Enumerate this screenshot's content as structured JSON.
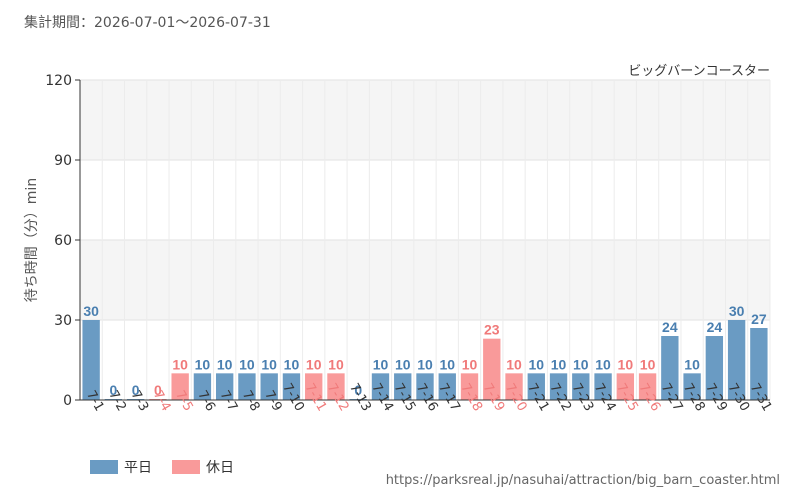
{
  "subtitle": "集計期間：2026-07-01～2026-07-31",
  "source_url": "https://parksreal.jp/nasuhai/attraction/big_barn_coaster.html",
  "colors": {
    "weekday": "#6a9bc3",
    "holiday": "#f99a9a",
    "weekday_text": "#4a7fb0",
    "holiday_text": "#f07a7a"
  },
  "chart_data": {
    "type": "bar",
    "title": "ビッグバーンコースター",
    "ylabel": "待ち時間（分）min",
    "xlabel": "",
    "ylim": [
      0,
      120
    ],
    "yticks": [
      0,
      30,
      60,
      90,
      120
    ],
    "grid": true,
    "legend_position": "bottom-left",
    "legend": [
      {
        "label": "平日",
        "type": "weekday"
      },
      {
        "label": "休日",
        "type": "holiday"
      }
    ],
    "categories": [
      "7-1",
      "7-2",
      "7-3",
      "7-4",
      "7-5",
      "7-6",
      "7-7",
      "7-8",
      "7-9",
      "7-10",
      "7-11",
      "7-12",
      "7-13",
      "7-14",
      "7-15",
      "7-16",
      "7-17",
      "7-18",
      "7-19",
      "7-20",
      "7-21",
      "7-22",
      "7-23",
      "7-24",
      "7-25",
      "7-26",
      "7-27",
      "7-28",
      "7-29",
      "7-30",
      "7-31"
    ],
    "values": [
      30,
      0,
      0,
      0,
      10,
      10,
      10,
      10,
      10,
      10,
      10,
      10,
      0,
      10,
      10,
      10,
      10,
      10,
      23,
      10,
      10,
      10,
      10,
      10,
      10,
      10,
      24,
      10,
      24,
      30,
      27
    ],
    "day_type": [
      "weekday",
      "weekday",
      "weekday",
      "holiday",
      "holiday",
      "weekday",
      "weekday",
      "weekday",
      "weekday",
      "weekday",
      "holiday",
      "holiday",
      "weekday",
      "weekday",
      "weekday",
      "weekday",
      "weekday",
      "holiday",
      "holiday",
      "holiday",
      "weekday",
      "weekday",
      "weekday",
      "weekday",
      "holiday",
      "holiday",
      "weekday",
      "weekday",
      "weekday",
      "weekday",
      "weekday"
    ]
  }
}
